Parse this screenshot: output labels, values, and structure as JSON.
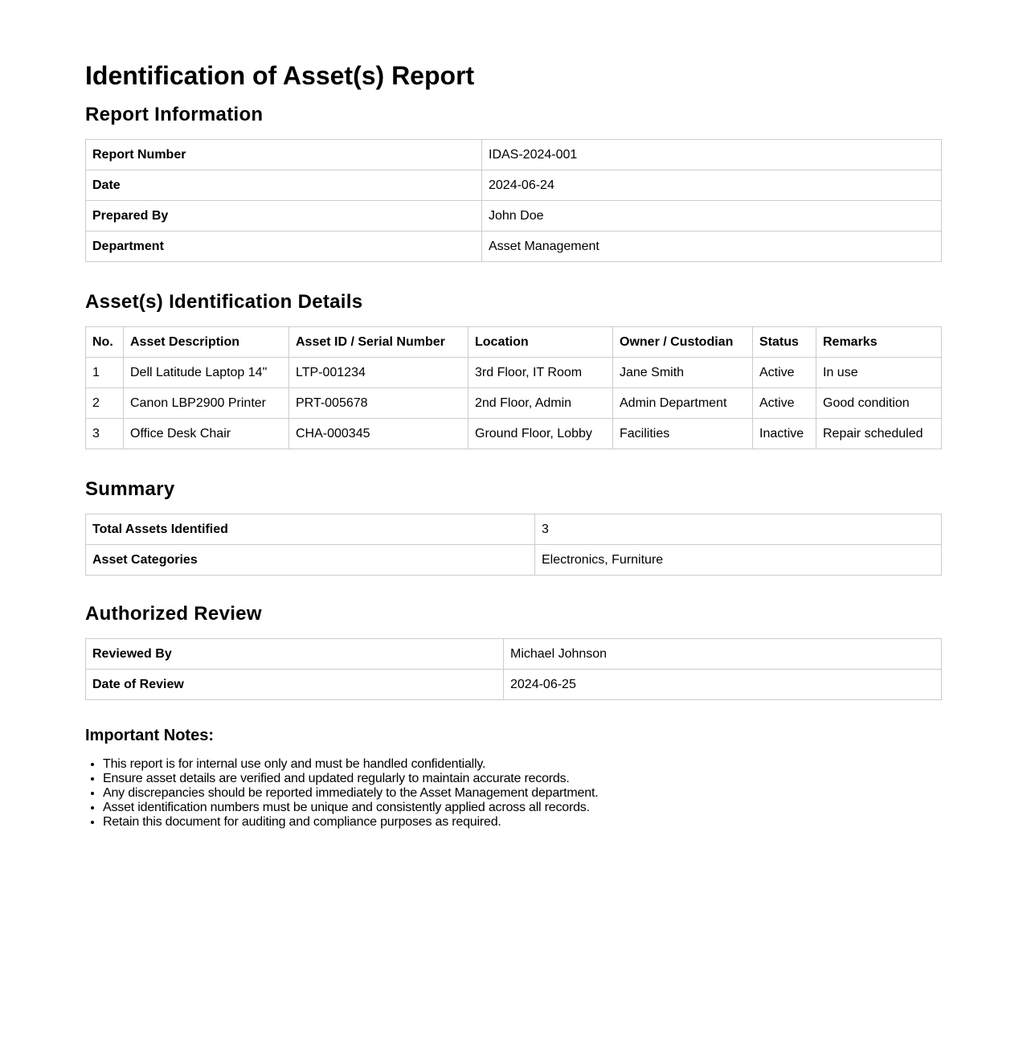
{
  "title": "Identification of Asset(s) Report",
  "report_info": {
    "heading": "Report Information",
    "rows": [
      {
        "label": "Report Number",
        "value": "IDAS-2024-001"
      },
      {
        "label": "Date",
        "value": "2024-06-24"
      },
      {
        "label": "Prepared By",
        "value": "John Doe"
      },
      {
        "label": "Department",
        "value": "Asset Management"
      }
    ]
  },
  "assets": {
    "heading": "Asset(s) Identification Details",
    "columns": [
      "No.",
      "Asset Description",
      "Asset ID / Serial Number",
      "Location",
      "Owner / Custodian",
      "Status",
      "Remarks"
    ],
    "rows": [
      [
        "1",
        "Dell Latitude Laptop 14\"",
        "LTP-001234",
        "3rd Floor, IT Room",
        "Jane Smith",
        "Active",
        "In use"
      ],
      [
        "2",
        "Canon LBP2900 Printer",
        "PRT-005678",
        "2nd Floor, Admin",
        "Admin Department",
        "Active",
        "Good condition"
      ],
      [
        "3",
        "Office Desk Chair",
        "CHA-000345",
        "Ground Floor, Lobby",
        "Facilities",
        "Inactive",
        "Repair scheduled"
      ]
    ]
  },
  "summary": {
    "heading": "Summary",
    "rows": [
      {
        "label": "Total Assets Identified",
        "value": "3"
      },
      {
        "label": "Asset Categories",
        "value": "Electronics, Furniture"
      }
    ]
  },
  "review": {
    "heading": "Authorized Review",
    "rows": [
      {
        "label": "Reviewed By",
        "value": "Michael Johnson"
      },
      {
        "label": "Date of Review",
        "value": "2024-06-25"
      }
    ]
  },
  "notes": {
    "heading": "Important Notes:",
    "items": [
      "This report is for internal use only and must be handled confidentially.",
      "Ensure asset details are verified and updated regularly to maintain accurate records.",
      "Any discrepancies should be reported immediately to the Asset Management department.",
      "Asset identification numbers must be unique and consistently applied across all records.",
      "Retain this document for auditing and compliance purposes as required."
    ]
  }
}
